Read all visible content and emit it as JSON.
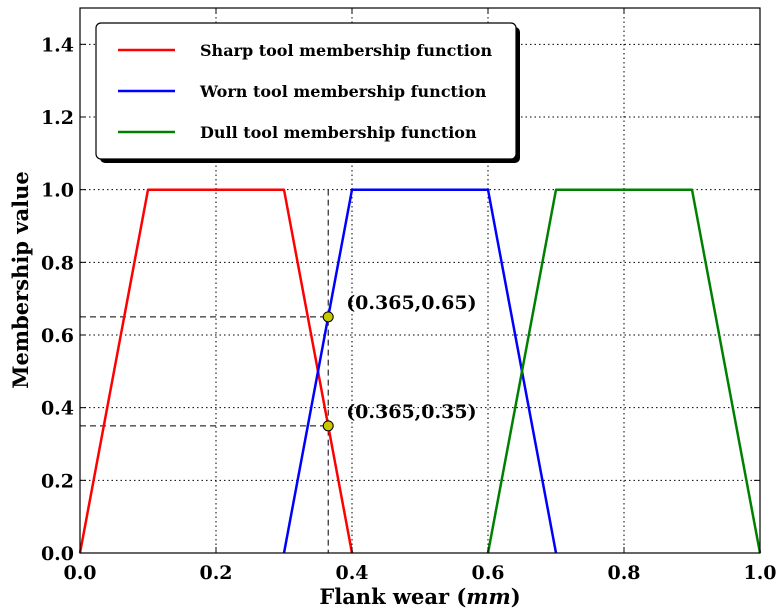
{
  "chart_data": {
    "type": "line",
    "xlabel": "Flank wear (mm)",
    "xlabel_main": "Flank wear",
    "xlabel_unit": "mm",
    "ylabel": "Membership value",
    "xlim": [
      0.0,
      1.0
    ],
    "ylim": [
      0.0,
      1.5
    ],
    "xticks": [
      "0.0",
      "0.2",
      "0.4",
      "0.6",
      "0.8",
      "1.0"
    ],
    "yticks": [
      "0.0",
      "0.2",
      "0.4",
      "0.6",
      "0.8",
      "1.0",
      "1.2",
      "1.4"
    ],
    "grid": true,
    "legend_position": "top-left",
    "series": [
      {
        "name": "Sharp tool membership function",
        "color": "#ff0000",
        "x": [
          0.0,
          0.1,
          0.3,
          0.4
        ],
        "y": [
          0.0,
          1.0,
          1.0,
          0.0
        ]
      },
      {
        "name": "Worn tool membership function",
        "color": "#0000ff",
        "x": [
          0.3,
          0.4,
          0.6,
          0.7
        ],
        "y": [
          0.0,
          1.0,
          1.0,
          0.0
        ]
      },
      {
        "name": "Dull tool membership function",
        "color": "#008000",
        "x": [
          0.6,
          0.7,
          0.9,
          1.0
        ],
        "y": [
          0.0,
          1.0,
          1.0,
          0.0
        ]
      }
    ],
    "reference_line_x": 0.365,
    "annotations": [
      {
        "text": "(0.365,0.65)",
        "x": 0.365,
        "y": 0.65
      },
      {
        "text": "(0.365,0.35)",
        "x": 0.365,
        "y": 0.35
      }
    ]
  }
}
